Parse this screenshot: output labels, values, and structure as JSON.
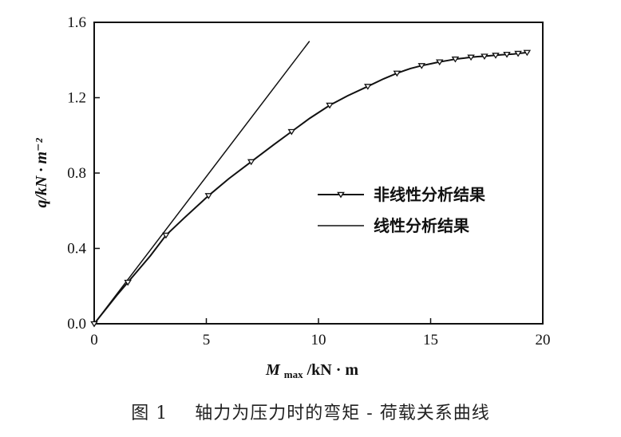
{
  "chart_data": {
    "type": "line",
    "xlabel_main": "M",
    "xlabel_sub": "max",
    "xlabel_unit": "/kN · m",
    "ylabel": "q/kN · m⁻²",
    "xlim": [
      0,
      20
    ],
    "ylim": [
      0,
      1.6
    ],
    "xticks": [
      0,
      5,
      10,
      15,
      20
    ],
    "yticks": [
      0.0,
      0.4,
      0.8,
      1.2,
      1.6
    ],
    "xtick_labels": [
      "0",
      "5",
      "10",
      "15",
      "20"
    ],
    "ytick_labels": [
      "0.0",
      "0.4",
      "0.8",
      "1.2",
      "1.6"
    ],
    "grid": false,
    "legend_position": "center-right",
    "series": [
      {
        "name": "非线性分析结果",
        "marker": "triangle-down",
        "x": [
          0,
          1.5,
          3.2,
          5.1,
          7.0,
          8.8,
          10.5,
          12.2,
          13.5,
          14.6,
          15.4,
          16.1,
          16.8,
          17.4,
          17.9,
          18.4,
          18.9,
          19.3
        ],
        "y": [
          0.0,
          0.22,
          0.47,
          0.68,
          0.86,
          1.02,
          1.16,
          1.26,
          1.33,
          1.37,
          1.39,
          1.405,
          1.415,
          1.42,
          1.425,
          1.43,
          1.435,
          1.44
        ],
        "curve_x": [
          0,
          0.5,
          1.0,
          1.5,
          2.0,
          2.5,
          3.2,
          4.0,
          5.1,
          6.0,
          7.0,
          8.0,
          8.8,
          9.6,
          10.5,
          11.3,
          12.2,
          12.9,
          13.5,
          14.1,
          14.6,
          15.0,
          15.4,
          15.8,
          16.1,
          16.5,
          16.8,
          17.1,
          17.4,
          17.7,
          17.9,
          18.2,
          18.4,
          18.7,
          18.9,
          19.1,
          19.3,
          19.4
        ],
        "curve_y": [
          0.0,
          0.075,
          0.15,
          0.22,
          0.29,
          0.36,
          0.47,
          0.56,
          0.68,
          0.77,
          0.86,
          0.95,
          1.02,
          1.09,
          1.16,
          1.21,
          1.26,
          1.3,
          1.33,
          1.355,
          1.37,
          1.38,
          1.39,
          1.398,
          1.405,
          1.41,
          1.415,
          1.418,
          1.42,
          1.423,
          1.425,
          1.428,
          1.43,
          1.432,
          1.435,
          1.437,
          1.44,
          1.442
        ]
      },
      {
        "name": "线性分析结果",
        "marker": "none",
        "x": [
          0,
          9.6
        ],
        "y": [
          0.0,
          1.5
        ]
      }
    ]
  },
  "caption": {
    "figure_number": "图 1",
    "title": "轴力为压力时的弯矩 - 荷载关系曲线"
  },
  "colors": {
    "line": "#111111",
    "background": "#ffffff"
  }
}
